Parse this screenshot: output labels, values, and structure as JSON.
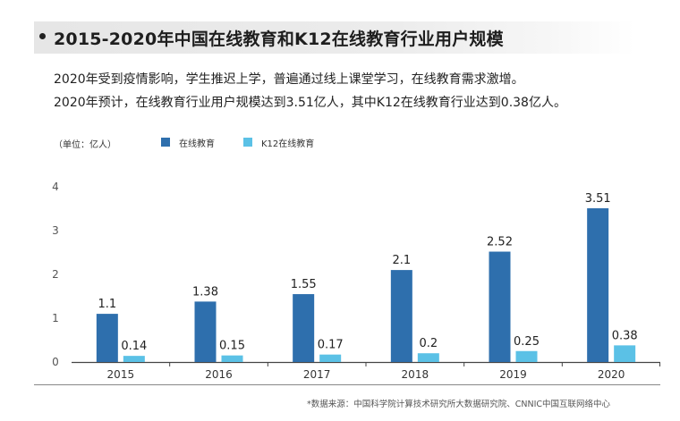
{
  "header": {
    "title": "2015-2020年中国在线教育和K12在线教育行业用户规模"
  },
  "description": {
    "line1": "2020年受到疫情影响，学生推迟上学，普遍通过线上课堂学习，在线教育需求激增。",
    "line2": "2020年预计，在线教育行业用户规模达到3.51亿人，其中K12在线教育行业达到0.38亿人。"
  },
  "source": "*数据来源：中国科学院计算技术研究所大数据研究院、CNNIC中国互联网络中心",
  "chart_data": {
    "type": "bar",
    "unit_label": "（单位：亿人）",
    "categories": [
      "2015",
      "2016",
      "2017",
      "2018",
      "2019",
      "2020"
    ],
    "series": [
      {
        "name": "在线教育",
        "values": [
          1.1,
          1.38,
          1.55,
          2.1,
          2.52,
          3.51
        ],
        "color": "#2e6fad"
      },
      {
        "name": "K12在线教育",
        "values": [
          0.14,
          0.15,
          0.17,
          0.2,
          0.25,
          0.38
        ],
        "color": "#5bc1e6"
      }
    ],
    "y_ticks": [
      "0",
      "1",
      "2",
      "3",
      "4"
    ],
    "ylim": [
      0,
      4
    ],
    "grid": false,
    "legend_position": "top-left"
  }
}
